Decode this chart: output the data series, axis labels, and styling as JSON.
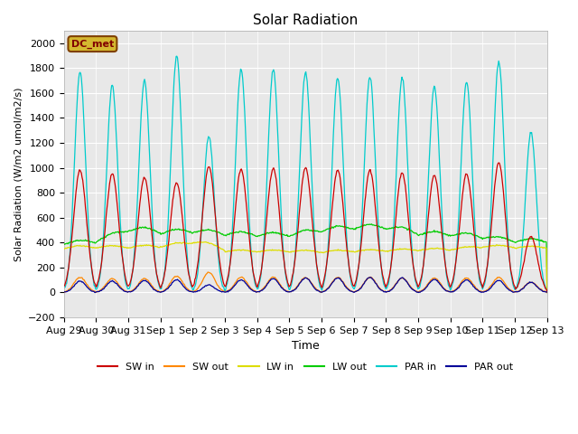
{
  "title": "Solar Radiation",
  "ylabel": "Solar Radiation (W/m2 umol/m2/s)",
  "xlabel": "Time",
  "ylim": [
    -200,
    2100
  ],
  "yticks": [
    -200,
    0,
    200,
    400,
    600,
    800,
    1000,
    1200,
    1400,
    1600,
    1800,
    2000
  ],
  "bg_color": "#e8e8e8",
  "legend_label": "DC_met",
  "legend_box_facecolor": "#d4b830",
  "legend_box_edgecolor": "#804000",
  "legend_box_text_color": "#800000",
  "num_days": 15,
  "colors": {
    "SW_in": "#cc0000",
    "SW_out": "#ff8800",
    "LW_in": "#dddd00",
    "LW_out": "#00cc00",
    "PAR_in": "#00cccc",
    "PAR_out": "#000099"
  },
  "xtick_labels": [
    "Aug 29",
    "Aug 30",
    "Aug 31",
    "Sep 1",
    "Sep 2",
    "Sep 3",
    "Sep 4",
    "Sep 5",
    "Sep 6",
    "Sep 7",
    "Sep 8",
    "Sep 9",
    "Sep 10",
    "Sep 11",
    "Sep 12",
    "Sep 13"
  ],
  "SW_in_peaks": [
    980,
    950,
    920,
    880,
    1010,
    985,
    995,
    1000,
    980,
    980,
    960,
    940,
    950,
    1040,
    450
  ],
  "SW_out_peaks": [
    120,
    110,
    110,
    130,
    160,
    120,
    120,
    120,
    120,
    120,
    115,
    115,
    115,
    120,
    80
  ],
  "LW_in_day": [
    370,
    375,
    375,
    380,
    430,
    340,
    340,
    340,
    335,
    340,
    345,
    350,
    355,
    380,
    370
  ],
  "LW_in_night": [
    340,
    345,
    345,
    350,
    380,
    315,
    315,
    315,
    310,
    315,
    320,
    325,
    330,
    350,
    345
  ],
  "LW_out_day": [
    410,
    430,
    530,
    500,
    510,
    490,
    480,
    480,
    520,
    545,
    545,
    490,
    485,
    460,
    430
  ],
  "LW_out_night": [
    370,
    385,
    470,
    450,
    460,
    440,
    430,
    430,
    465,
    485,
    485,
    440,
    435,
    415,
    385
  ],
  "PAR_in_peaks": [
    1770,
    1660,
    1700,
    1900,
    1250,
    1790,
    1790,
    1770,
    1720,
    1730,
    1720,
    1650,
    1690,
    1850,
    1280
  ],
  "PAR_out_peaks": [
    90,
    90,
    95,
    100,
    60,
    100,
    110,
    115,
    115,
    120,
    115,
    105,
    100,
    95,
    80
  ]
}
